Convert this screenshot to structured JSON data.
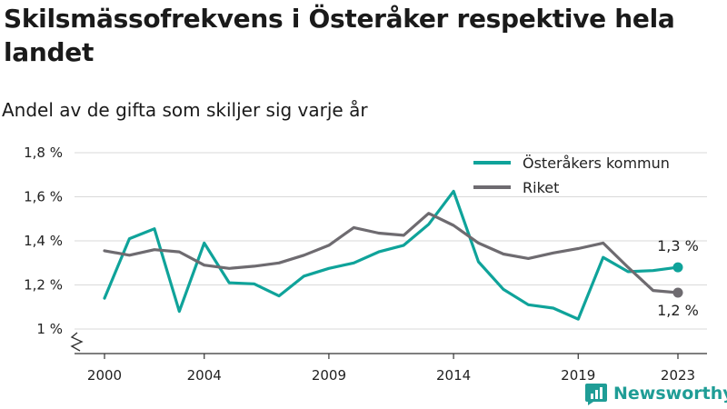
{
  "title": "Skilsmässofrekvens i Österåker respektive hela landet",
  "subtitle": "Andel av de gifta som skiljer sig varje år",
  "brand": {
    "name": "Newsworthy"
  },
  "colors": {
    "osteraker": "#0fa39a",
    "riket": "#6e6b70",
    "grid": "#d9d9d9",
    "axis": "#333333",
    "brand": "#1f9d96"
  },
  "chart_data": {
    "type": "line",
    "title": "Skilsmässofrekvens i Österåker respektive hela landet",
    "subtitle": "Andel av de gifta som skiljer sig varje år",
    "xlabel": "",
    "ylabel": "",
    "x": [
      2000,
      2001,
      2002,
      2003,
      2004,
      2005,
      2006,
      2007,
      2008,
      2009,
      2010,
      2011,
      2012,
      2013,
      2014,
      2015,
      2016,
      2017,
      2018,
      2019,
      2020,
      2021,
      2022,
      2023
    ],
    "x_ticks": [
      2000,
      2004,
      2009,
      2014,
      2019,
      2023
    ],
    "ylim": [
      1.0,
      1.8
    ],
    "y_ticks": [
      1.0,
      1.2,
      1.4,
      1.6,
      1.8
    ],
    "y_tick_labels": [
      "1 %",
      "1,2 %",
      "1,4 %",
      "1,6 %",
      "1,8 %"
    ],
    "grid": true,
    "axis_break": true,
    "legend_position": "top-right",
    "series": [
      {
        "name": "Österåkers kommun",
        "color": "#0fa39a",
        "values": [
          1.14,
          1.41,
          1.455,
          1.08,
          1.39,
          1.21,
          1.205,
          1.15,
          1.24,
          1.275,
          1.3,
          1.35,
          1.38,
          1.475,
          1.625,
          1.305,
          1.18,
          1.11,
          1.095,
          1.045,
          1.325,
          1.26,
          1.265,
          1.28
        ],
        "end_label": "1,3 %"
      },
      {
        "name": "Riket",
        "color": "#6e6b70",
        "values": [
          1.355,
          1.335,
          1.36,
          1.35,
          1.29,
          1.275,
          1.285,
          1.3,
          1.335,
          1.38,
          1.46,
          1.435,
          1.425,
          1.525,
          1.47,
          1.39,
          1.34,
          1.32,
          1.345,
          1.365,
          1.39,
          1.28,
          1.175,
          1.165
        ],
        "end_label": "1,2 %"
      }
    ]
  }
}
